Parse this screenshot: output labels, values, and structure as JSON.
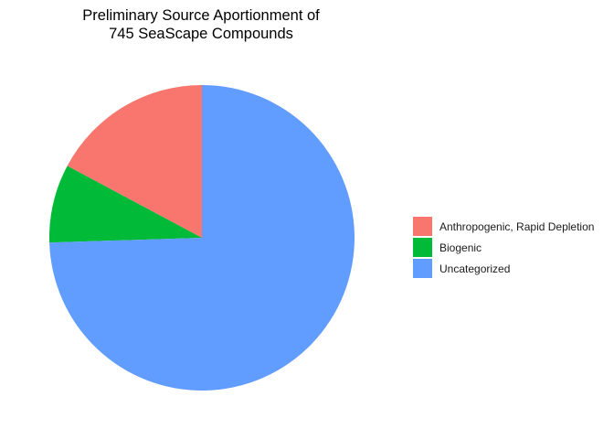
{
  "chart_data": {
    "type": "pie",
    "title": [
      "Preliminary Source Aportionment of",
      "745 SeaScape Compounds"
    ],
    "categories": [
      "Anthropogenic, Rapid Depletion",
      "Biogenic",
      "Uncategorized"
    ],
    "values": [
      0.172,
      0.083,
      0.745
    ],
    "colors": [
      "#F8766D",
      "#00BA38",
      "#619CFF"
    ],
    "start_angle_deg": 0,
    "direction": "counterclockwise",
    "legend_position": "right",
    "grid": false
  }
}
